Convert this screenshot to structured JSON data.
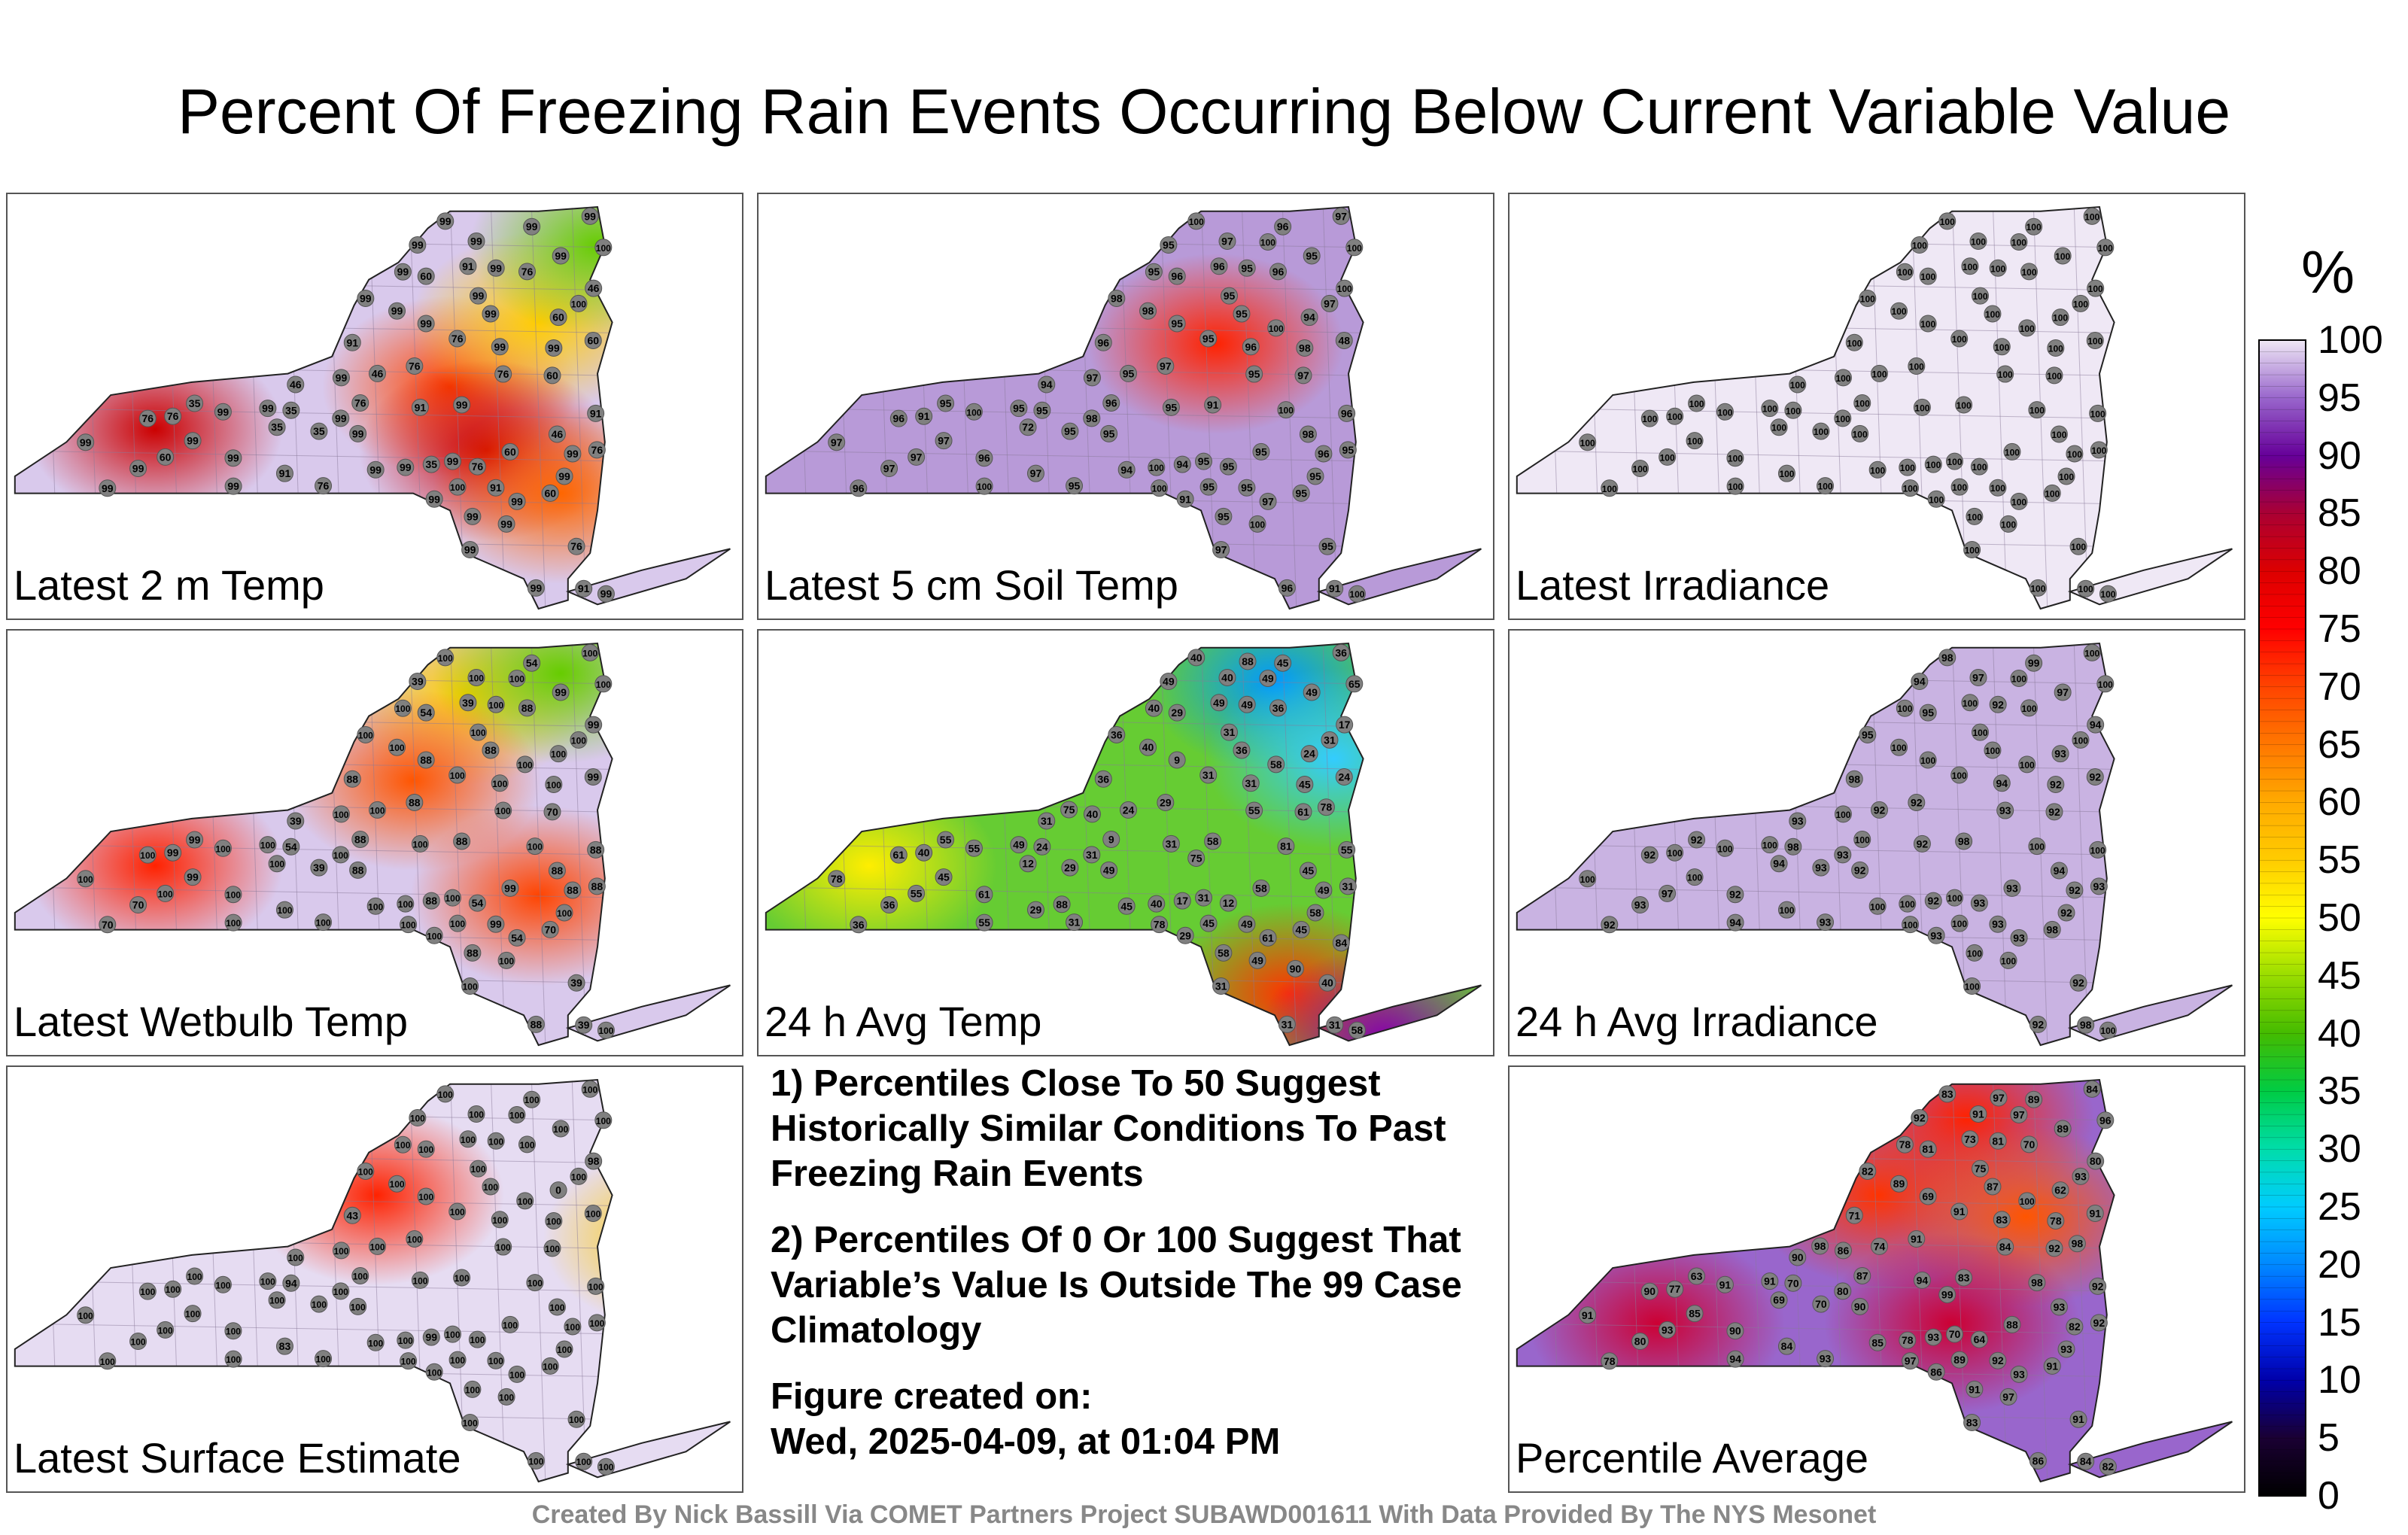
{
  "title": "Percent Of Freezing Rain Events Occurring Below Current Variable Value",
  "panels": [
    {
      "label": "Latest 2 m Temp",
      "base": "#d9c9ec",
      "hot": [
        [
          0.2,
          0.55,
          "#cc0000"
        ],
        [
          0.6,
          0.45,
          "#ff4400"
        ],
        [
          0.72,
          0.3,
          "#ffcc00"
        ],
        [
          0.8,
          0.12,
          "#66cc00"
        ],
        [
          0.65,
          0.6,
          "#cc0000"
        ],
        [
          0.75,
          0.7,
          "#ff6600"
        ]
      ],
      "values": [
        35,
        35,
        46,
        99,
        60,
        76,
        91,
        46,
        35,
        99,
        91,
        76,
        35,
        60,
        46,
        91,
        99,
        76,
        99,
        60,
        76,
        35,
        99,
        99,
        99,
        91,
        99,
        60,
        76,
        76,
        99,
        60,
        76,
        91,
        99,
        46,
        99,
        99,
        99,
        60,
        76,
        99,
        91,
        99,
        99,
        76,
        99,
        99,
        99,
        99,
        60,
        76,
        99,
        99,
        91,
        99,
        99,
        76,
        100,
        99,
        99,
        99,
        99,
        99,
        99,
        99,
        99,
        99,
        99,
        99,
        99,
        99,
        100,
        99,
        99,
        100
      ]
    },
    {
      "label": "Latest 5 cm Soil Temp",
      "base": "#b89ad8",
      "hot": [
        [
          0.62,
          0.35,
          "#ff2200"
        ]
      ],
      "values": [
        95,
        95,
        95,
        95,
        96,
        96,
        91,
        100,
        72,
        95,
        96,
        95,
        94,
        48,
        94,
        96,
        96,
        95,
        91,
        94,
        96,
        95,
        95,
        95,
        97,
        95,
        95,
        97,
        95,
        97,
        95,
        95,
        96,
        96,
        97,
        98,
        95,
        96,
        91,
        97,
        95,
        96,
        95,
        97,
        96,
        95,
        95,
        97,
        98,
        98,
        95,
        91,
        98,
        94,
        97,
        95,
        97,
        95,
        97,
        96,
        98,
        97,
        100,
        96,
        97,
        95,
        100,
        97,
        100,
        95,
        95,
        100,
        95,
        100,
        100,
        100,
        100,
        100,
        100,
        100
      ]
    },
    {
      "label": "Latest Irradiance",
      "base": "#efe8f5",
      "hot": [],
      "values": [
        100,
        100,
        100,
        100,
        100,
        100,
        100,
        100,
        100,
        100,
        100,
        100,
        100,
        100,
        100,
        100,
        100,
        100,
        100,
        100,
        100,
        100,
        100,
        100,
        100,
        100,
        100,
        100,
        100,
        100,
        100,
        100,
        100,
        100,
        100,
        100,
        100,
        100,
        100,
        100,
        100,
        100,
        100,
        100,
        100,
        100,
        100,
        100,
        100,
        100,
        100,
        100,
        100,
        100,
        100,
        100,
        100,
        100,
        100,
        100,
        100,
        100,
        100,
        100,
        100,
        100,
        100,
        100,
        100,
        100,
        100,
        100,
        100,
        100,
        100,
        100,
        100,
        100,
        100,
        100
      ]
    },
    {
      "label": "Latest Wetbulb Temp",
      "base": "#d9c9ec",
      "hot": [
        [
          0.2,
          0.55,
          "#ff2200"
        ],
        [
          0.62,
          0.15,
          "#ffcc00"
        ],
        [
          0.75,
          0.1,
          "#66cc00"
        ],
        [
          0.55,
          0.35,
          "#ff5500"
        ],
        [
          0.72,
          0.62,
          "#ff4400"
        ]
      ],
      "values": [
        39,
        54,
        100,
        39,
        54,
        88,
        39,
        99,
        100,
        88,
        88,
        54,
        88,
        99,
        39,
        39,
        88,
        39,
        100,
        100,
        88,
        99,
        100,
        100,
        100,
        100,
        100,
        70,
        100,
        88,
        88,
        70,
        100,
        88,
        70,
        88,
        99,
        54,
        88,
        100,
        100,
        88,
        99,
        99,
        70,
        88,
        88,
        54,
        100,
        100,
        99,
        99,
        100,
        100,
        100,
        88,
        100,
        100,
        100,
        100,
        100,
        100,
        100,
        100,
        100,
        100,
        100,
        100,
        100,
        100,
        100,
        100,
        100,
        100,
        100,
        100,
        100,
        100,
        100,
        100
      ]
    },
    {
      "label": "24 h Avg Temp",
      "base": "#66cc33",
      "hot": [
        [
          0.7,
          0.12,
          "#0099ff"
        ],
        [
          0.78,
          0.3,
          "#33ccff"
        ],
        [
          0.15,
          0.55,
          "#ffee00"
        ],
        [
          0.72,
          0.85,
          "#ff3300"
        ],
        [
          0.85,
          0.95,
          "#8800aa"
        ]
      ],
      "values": [
        29,
        24,
        24,
        49,
        29,
        9,
        31,
        17,
        12,
        9,
        36,
        12,
        17,
        24,
        31,
        49,
        31,
        40,
        29,
        24,
        36,
        55,
        49,
        31,
        40,
        31,
        58,
        61,
        31,
        29,
        58,
        45,
        61,
        55,
        36,
        45,
        49,
        45,
        58,
        55,
        55,
        49,
        49,
        45,
        36,
        31,
        49,
        61,
        31,
        45,
        58,
        40,
        36,
        45,
        29,
        36,
        40,
        31,
        31,
        61,
        40,
        31,
        40,
        31,
        36,
        31,
        55,
        78,
        55,
        49,
        40,
        40,
        45,
        58,
        49,
        65,
        49,
        78,
        81,
        58,
        75,
        78,
        75,
        88,
        84,
        88,
        90
      ]
    },
    {
      "label": "24 h Avg Irradiance",
      "base": "#c9b3e2",
      "hot": [],
      "values": [
        93,
        98,
        92,
        94,
        95,
        100,
        98,
        94,
        94,
        100,
        98,
        93,
        92,
        92,
        93,
        100,
        92,
        92,
        93,
        93,
        100,
        92,
        92,
        100,
        100,
        92,
        92,
        92,
        93,
        92,
        100,
        98,
        92,
        100,
        93,
        94,
        97,
        99,
        98,
        97,
        93,
        92,
        93,
        100,
        92,
        93,
        92,
        93,
        93,
        92,
        93,
        100,
        95,
        100,
        100,
        100,
        97,
        100,
        100,
        92,
        100,
        100,
        98,
        94,
        100,
        100,
        94,
        100,
        100,
        100,
        100,
        100,
        100,
        100,
        100,
        100,
        100,
        100,
        100,
        100
      ]
    },
    {
      "label": "Latest Surface Estimate",
      "base": "#e6dcf2",
      "hot": [
        [
          0.5,
          0.3,
          "#ff2200"
        ],
        [
          0.9,
          0.4,
          "#ffcc00"
        ]
      ],
      "values": [
        100,
        94,
        100,
        100,
        100,
        100,
        100,
        98,
        100,
        100,
        43,
        100,
        99,
        100,
        100,
        100,
        100,
        100,
        100,
        0,
        100,
        100,
        100,
        100,
        100,
        100,
        100,
        100,
        100,
        100,
        100,
        100,
        100,
        100,
        100,
        100,
        100,
        100,
        100,
        100,
        100,
        100,
        100,
        100,
        100,
        100,
        100,
        100,
        100,
        100,
        100,
        100,
        100,
        100,
        83,
        100,
        100,
        100,
        100,
        100,
        100,
        100,
        100,
        100,
        100,
        100,
        100,
        100,
        100,
        100,
        100,
        100,
        100,
        100,
        100,
        100,
        100,
        100,
        100,
        100
      ]
    },
    {
      "label": "Percentile Average",
      "base": "#9966cc",
      "hot": [
        [
          0.62,
          0.12,
          "#ff2200"
        ],
        [
          0.5,
          0.3,
          "#ff3300"
        ],
        [
          0.7,
          0.35,
          "#ff5500"
        ],
        [
          0.2,
          0.6,
          "#cc0033"
        ],
        [
          0.6,
          0.6,
          "#cc0033"
        ]
      ],
      "values": [
        70,
        70,
        74,
        92,
        81,
        87,
        84,
        80,
        69,
        69,
        71,
        64,
        93,
        91,
        90,
        73,
        86,
        91,
        86,
        62,
        70,
        63,
        81,
        70,
        86,
        94,
        93,
        92,
        93,
        91,
        91,
        91,
        90,
        92,
        80,
        93,
        89,
        89,
        83,
        93,
        84,
        82,
        92,
        85,
        78,
        92,
        90,
        93,
        80,
        78,
        88,
        77,
        82,
        85,
        84,
        87,
        91,
        91,
        93,
        90,
        89,
        83,
        83,
        83,
        84,
        75,
        94,
        91,
        91,
        91,
        78,
        78,
        89,
        82,
        97,
        96,
        97,
        97,
        98,
        100,
        99,
        98,
        98,
        97
      ]
    }
  ],
  "notes": [
    "1) Percentiles Close To 50 Suggest Historically Similar Conditions To Past Freezing Rain Events",
    "2) Percentiles Of 0 Or 100 Suggest That Variable’s Value Is Outside The 99 Case Climatology",
    "Figure created on:",
    "Wed, 2025-04-09, at 01:04 PM"
  ],
  "footer": "Created By Nick Bassill Via COMET Partners Project SUBAWD001611 With Data Provided By The NYS Mesonet",
  "colorbar": {
    "unit": "%",
    "ticks": [
      "100",
      "95",
      "90",
      "85",
      "80",
      "75",
      "70",
      "65",
      "60",
      "55",
      "50",
      "45",
      "40",
      "35",
      "30",
      "25",
      "20",
      "15",
      "10",
      "5",
      "0"
    ],
    "stops": [
      [
        0,
        "#000000"
      ],
      [
        5,
        "#1a0033"
      ],
      [
        10,
        "#0000aa"
      ],
      [
        15,
        "#0033ff"
      ],
      [
        20,
        "#0088ff"
      ],
      [
        25,
        "#00ccff"
      ],
      [
        30,
        "#00ddaa"
      ],
      [
        35,
        "#00cc44"
      ],
      [
        40,
        "#44bb00"
      ],
      [
        45,
        "#99dd00"
      ],
      [
        50,
        "#ffff00"
      ],
      [
        55,
        "#ffcc00"
      ],
      [
        60,
        "#ffaa00"
      ],
      [
        65,
        "#ff7700"
      ],
      [
        70,
        "#ff4400"
      ],
      [
        75,
        "#ff0000"
      ],
      [
        80,
        "#dd0000"
      ],
      [
        85,
        "#aa0033"
      ],
      [
        90,
        "#660099"
      ],
      [
        95,
        "#9966cc"
      ],
      [
        100,
        "#efe8f5"
      ]
    ]
  }
}
